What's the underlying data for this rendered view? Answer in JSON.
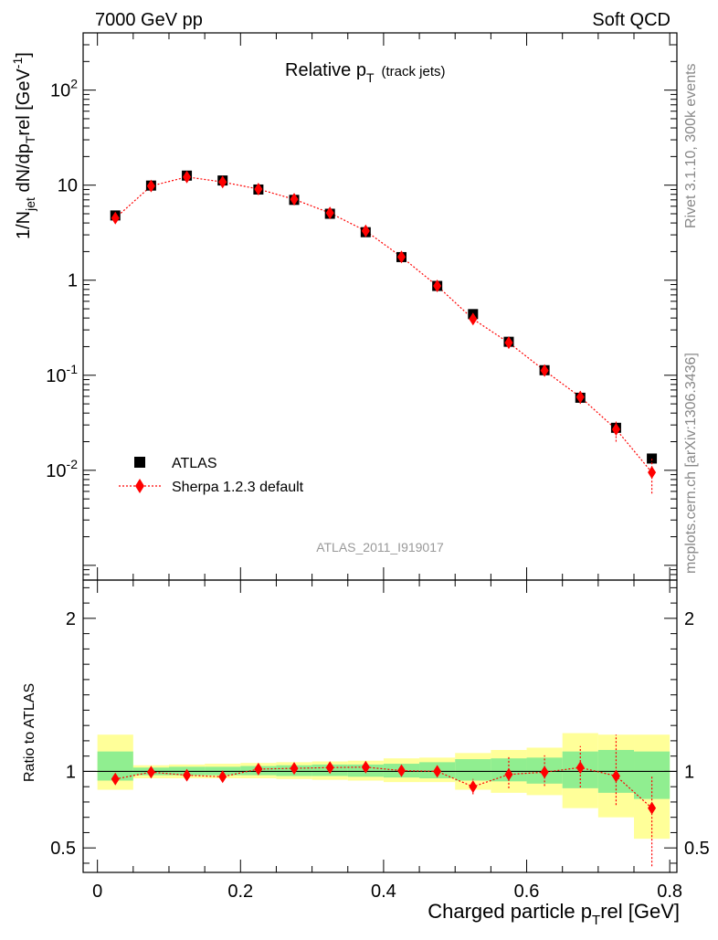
{
  "header": {
    "left": "7000 GeV pp",
    "right": "Soft QCD"
  },
  "side_text": {
    "rivet": "Rivet 3.1.10,  300k events",
    "mcplots": "mcplots.cern.ch [arXiv:1306.3436]"
  },
  "analysis_id": "ATLAS_2011_I919017",
  "main_title": {
    "text": "Relative p",
    "sub": "T",
    "suffix": "(track jets)"
  },
  "y_label": {
    "p1": "1/N",
    "s1": "jet",
    "p2": " dN/dp",
    "s2": "T",
    "p3": "rel [GeV",
    "s3": "-1",
    "p4": "]"
  },
  "ratio_ylabel": "Ratio to ATLAS",
  "x_label": {
    "p1": "Charged particle p",
    "s1": "T",
    "p2": "rel [GeV]"
  },
  "legend": [
    {
      "label": "ATLAS",
      "color": "#000000",
      "marker": "square"
    },
    {
      "label": "Sherpa 1.2.3 default",
      "color": "#ff0000",
      "marker": "diamond"
    }
  ],
  "chart_data": [
    {
      "type": "scatter",
      "y_scale": "log",
      "ylim": [
        0.0007,
        400
      ],
      "xlim": [
        -0.02,
        0.81
      ],
      "ytick_labels": [
        "10^-2",
        "10^-1",
        "1",
        "10",
        "10^2"
      ],
      "x": [
        0.025,
        0.075,
        0.125,
        0.175,
        0.225,
        0.275,
        0.325,
        0.375,
        0.425,
        0.475,
        0.525,
        0.575,
        0.625,
        0.675,
        0.725,
        0.775
      ],
      "series": [
        {
          "name": "ATLAS",
          "values": [
            4.8,
            9.9,
            12.6,
            11.2,
            9.0,
            7.0,
            5.0,
            3.2,
            1.75,
            0.87,
            0.44,
            0.225,
            0.113,
            0.058,
            0.028,
            0.0133
          ]
        },
        {
          "name": "Sherpa 1.2.3 default",
          "values": [
            4.5,
            9.8,
            12.2,
            10.8,
            9.1,
            7.1,
            5.1,
            3.3,
            1.76,
            0.87,
            0.39,
            0.22,
            0.112,
            0.059,
            0.027,
            0.0095
          ],
          "err_lo": [
            0.2,
            0.3,
            0.4,
            0.4,
            0.3,
            0.25,
            0.2,
            0.15,
            0.1,
            0.06,
            0.04,
            0.025,
            0.012,
            0.009,
            0.007,
            0.0038
          ],
          "err_hi": [
            0.2,
            0.3,
            0.4,
            0.4,
            0.3,
            0.25,
            0.2,
            0.15,
            0.1,
            0.06,
            0.04,
            0.025,
            0.012,
            0.009,
            0.007,
            0.0038
          ]
        }
      ]
    },
    {
      "type": "scatter",
      "ylabel": "Ratio to ATLAS",
      "ylim": [
        0.34,
        2.25
      ],
      "xlim": [
        -0.02,
        0.81
      ],
      "yticks": [
        0.5,
        1,
        2
      ],
      "ytick_labels": [
        "0.5",
        "1",
        "2"
      ],
      "xticks": [
        0,
        0.2,
        0.4,
        0.6,
        0.8
      ],
      "xtick_labels": [
        "0",
        "0.2",
        "0.4",
        "0.6",
        "0.8"
      ],
      "bin_edges": [
        0,
        0.05,
        0.1,
        0.15,
        0.2,
        0.25,
        0.3,
        0.35,
        0.4,
        0.45,
        0.5,
        0.55,
        0.6,
        0.65,
        0.7,
        0.75,
        0.8
      ],
      "bands": {
        "outer_lo": [
          0.88,
          0.955,
          0.955,
          0.955,
          0.955,
          0.95,
          0.945,
          0.94,
          0.93,
          0.93,
          0.88,
          0.86,
          0.845,
          0.76,
          0.7,
          0.56
        ],
        "outer_hi": [
          1.24,
          1.04,
          1.045,
          1.05,
          1.055,
          1.06,
          1.065,
          1.07,
          1.085,
          1.09,
          1.12,
          1.14,
          1.155,
          1.25,
          1.24,
          1.24
        ],
        "inner_lo": [
          0.94,
          0.975,
          0.975,
          0.975,
          0.975,
          0.97,
          0.97,
          0.965,
          0.96,
          0.955,
          0.94,
          0.935,
          0.92,
          0.89,
          0.86,
          0.82
        ],
        "inner_hi": [
          1.13,
          1.025,
          1.03,
          1.03,
          1.035,
          1.04,
          1.045,
          1.045,
          1.05,
          1.06,
          1.08,
          1.085,
          1.09,
          1.13,
          1.14,
          1.13
        ],
        "outer_color": "#ffff99",
        "inner_color": "#90ee90"
      },
      "x": [
        0.025,
        0.075,
        0.125,
        0.175,
        0.225,
        0.275,
        0.325,
        0.375,
        0.425,
        0.475,
        0.525,
        0.575,
        0.625,
        0.675,
        0.725,
        0.775
      ],
      "series": [
        {
          "name": "Sherpa 1.2.3 default",
          "values": [
            0.95,
            0.995,
            0.975,
            0.965,
            1.015,
            1.02,
            1.025,
            1.028,
            1.005,
            1.0,
            0.9,
            0.98,
            0.995,
            1.025,
            0.97,
            0.76
          ],
          "err_lo": [
            0.01,
            0.01,
            0.01,
            0.01,
            0.01,
            0.01,
            0.01,
            0.01,
            0.015,
            0.02,
            0.05,
            0.09,
            0.09,
            0.13,
            0.19,
            0.38
          ],
          "err_hi": [
            0.01,
            0.01,
            0.01,
            0.01,
            0.01,
            0.01,
            0.01,
            0.01,
            0.015,
            0.02,
            0.05,
            0.12,
            0.11,
            0.14,
            0.27,
            0.21
          ]
        }
      ]
    }
  ]
}
